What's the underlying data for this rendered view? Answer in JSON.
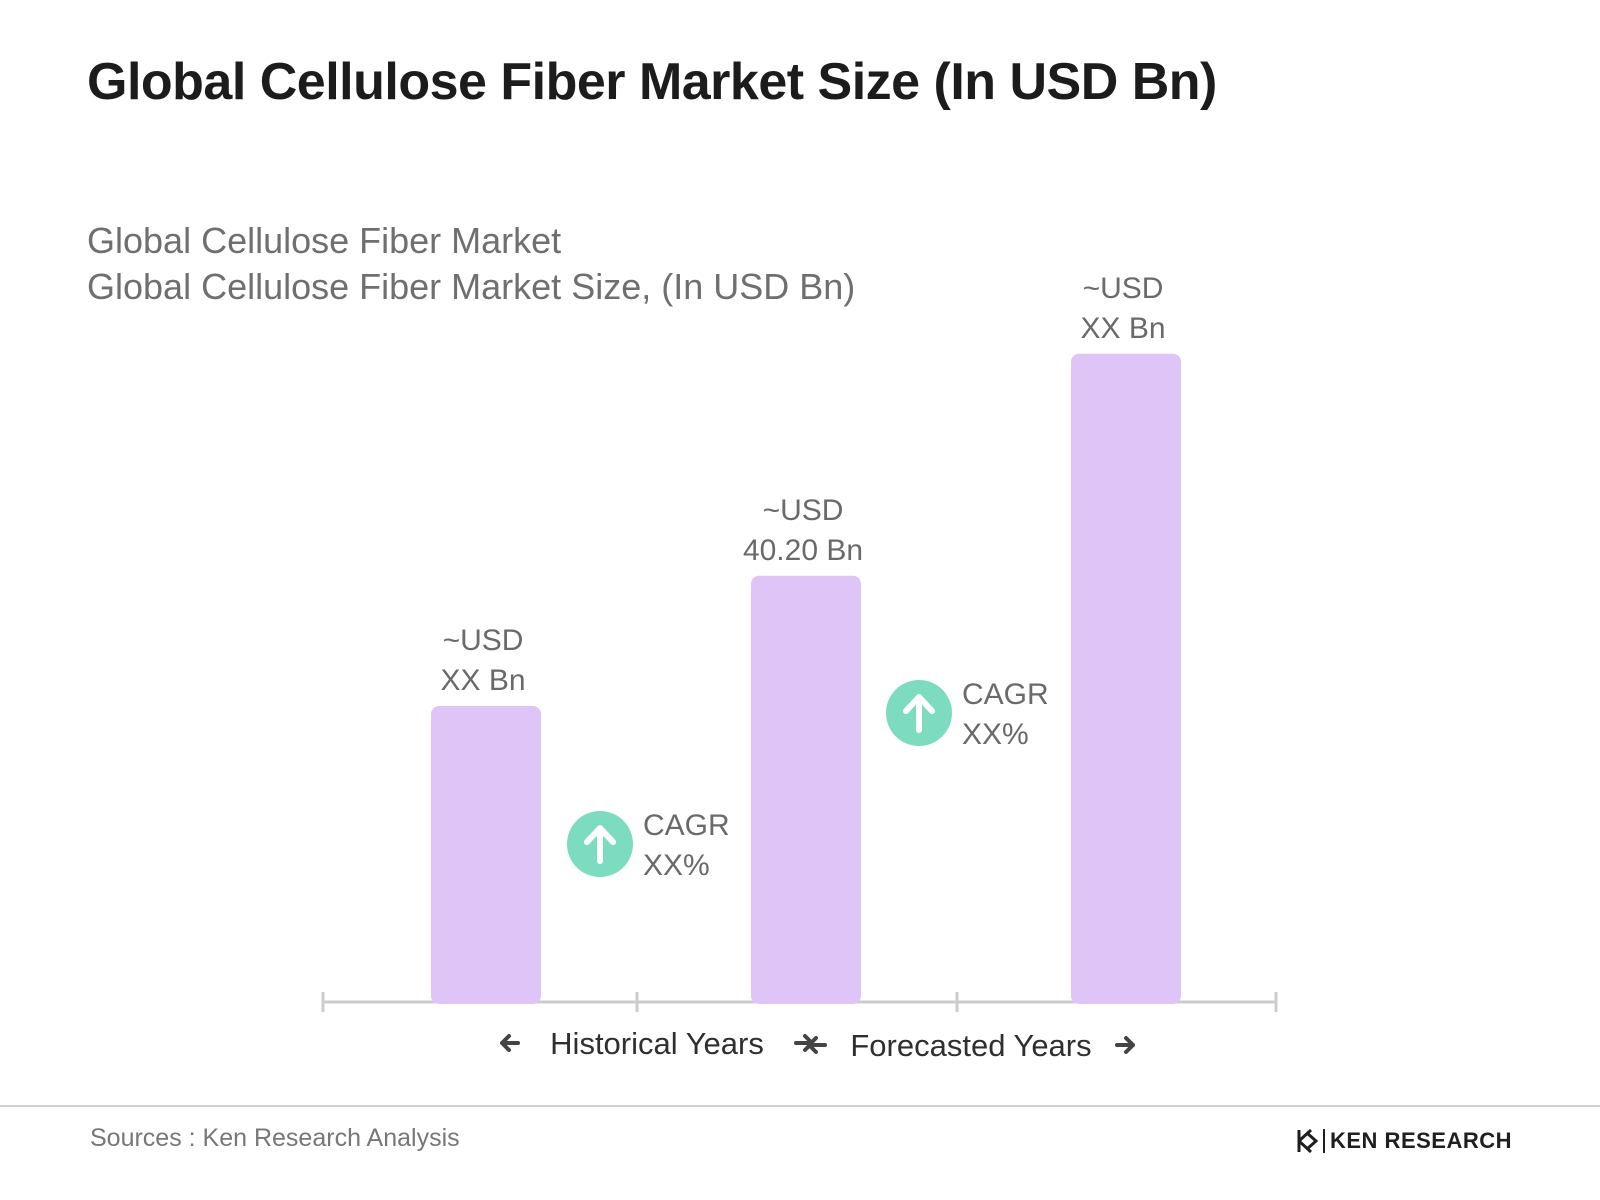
{
  "header": {
    "title": "Global Cellulose Fiber Market Size (In USD Bn)",
    "subtitle_1": "Global Cellulose Fiber Market",
    "subtitle_2": "Global Cellulose Fiber Market Size, (In USD Bn)"
  },
  "chart_data": {
    "type": "bar",
    "categories": [
      "",
      "",
      ""
    ],
    "values": [
      10,
      14.4,
      21.9
    ],
    "data_labels": [
      [
        "~USD",
        "XX Bn"
      ],
      [
        "~USD",
        "40.20 Bn"
      ],
      [
        "~USD",
        "XX Bn"
      ]
    ],
    "annotations": [
      {
        "text_1": "CAGR",
        "text_2": "XX%",
        "between": [
          0,
          1
        ],
        "icon": "arrow-up-circle-icon"
      },
      {
        "text_1": "CAGR",
        "text_2": "XX%",
        "between": [
          1,
          2
        ],
        "icon": "arrow-up-circle-icon"
      }
    ],
    "periods": [
      {
        "label": "Historical Years",
        "span": [
          0,
          1
        ]
      },
      {
        "label": "Forecasted Years",
        "span": [
          1,
          2
        ]
      }
    ],
    "title": "",
    "xlabel": "",
    "ylabel": "",
    "y_axis": "none",
    "grid": false,
    "bar_color": "#dfc4f7",
    "accent_color": "#7ddcc0"
  },
  "footer": {
    "sources": "Sources : Ken Research Analysis",
    "brand": "KEN RESEARCH"
  }
}
